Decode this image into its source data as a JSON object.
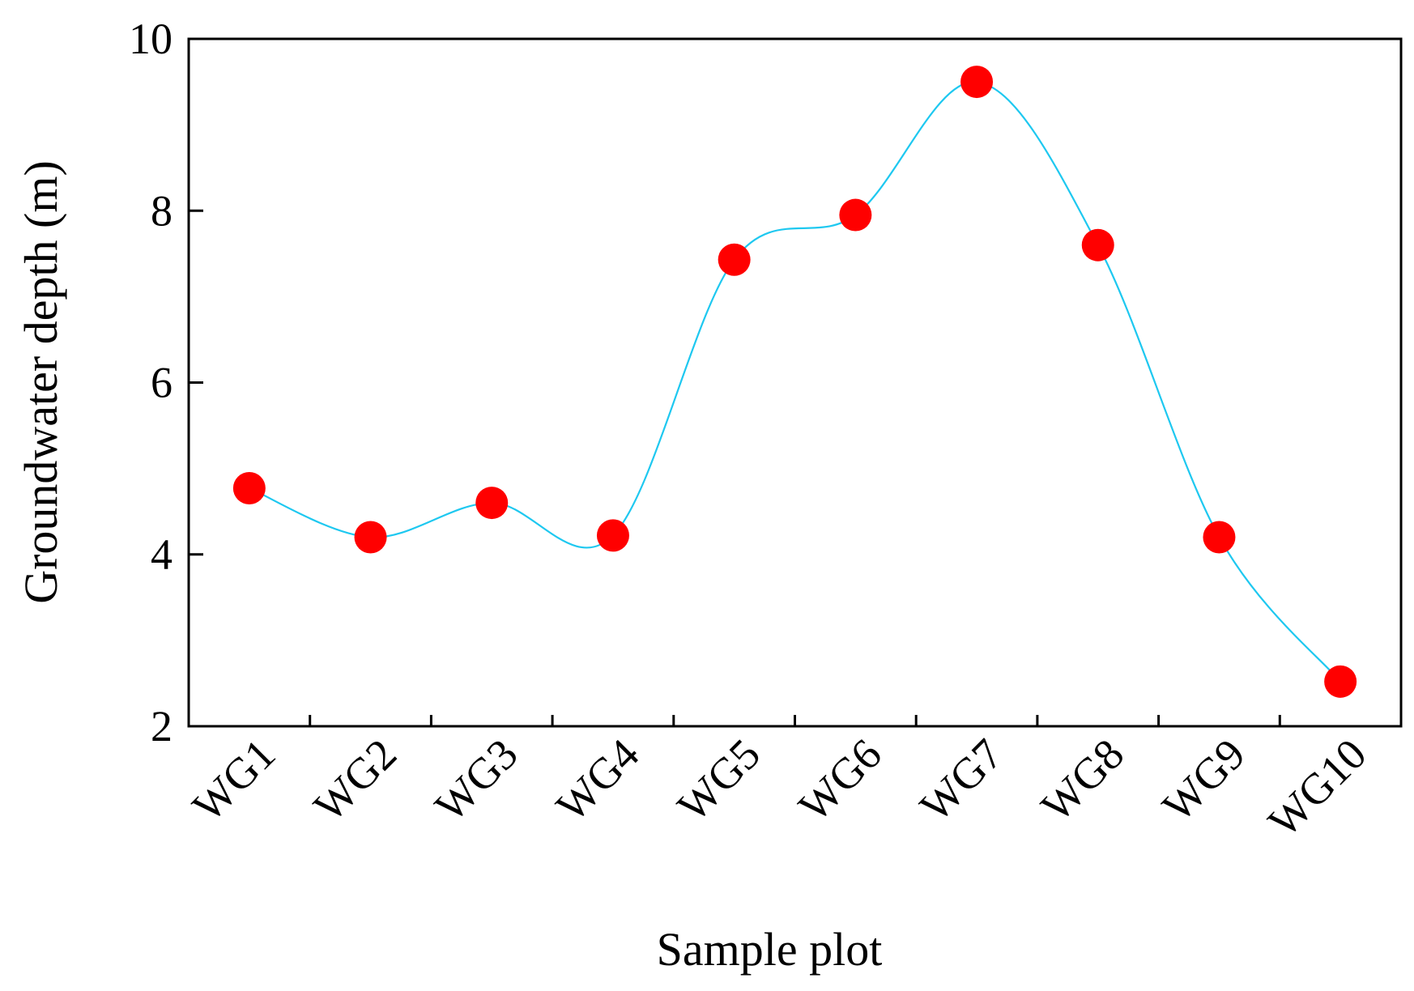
{
  "chart_data": {
    "type": "line",
    "title": "",
    "xlabel": "Sample plot",
    "ylabel": "Groundwater depth (m)",
    "categories": [
      "WG1",
      "WG2",
      "WG3",
      "WG4",
      "WG5",
      "WG6",
      "WG7",
      "WG8",
      "WG9",
      "WG10"
    ],
    "series": [
      {
        "values": [
          4.77,
          4.2,
          4.6,
          4.22,
          7.43,
          7.95,
          9.5,
          7.6,
          4.2,
          2.52
        ]
      }
    ],
    "ylim": [
      2,
      10
    ],
    "yticks": [
      "2",
      "4",
      "6",
      "8",
      "10"
    ],
    "grid": false,
    "smooth": true,
    "colors": {
      "line": "#1ec8f0",
      "marker": "#ff0000",
      "axis": "#000000"
    }
  }
}
